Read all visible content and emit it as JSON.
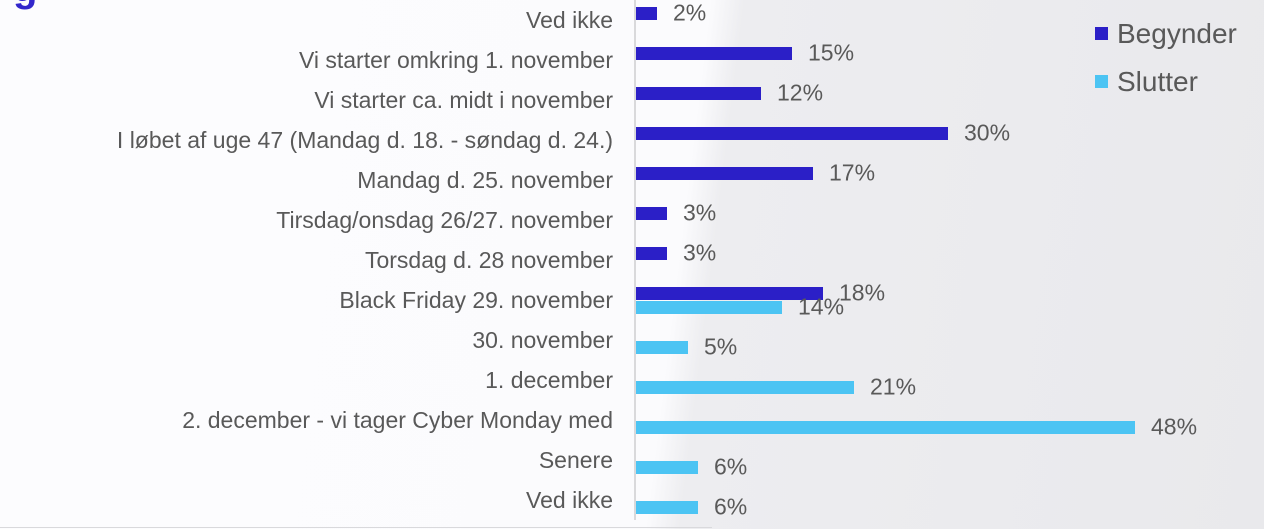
{
  "clipped_title": {
    "fragment": "g"
  },
  "colors": {
    "begynder": "#2b1fc7",
    "slutter": "#4cc4f3",
    "label_text": "#595959",
    "axis_line": "#d9d9db",
    "background_left": "#fbfbfd",
    "background_right": "#ebebee"
  },
  "legend": {
    "position": "top-right",
    "items": [
      {
        "label": "Begynder",
        "color": "#2b1fc7"
      },
      {
        "label": "Slutter",
        "color": "#4cc4f3"
      }
    ]
  },
  "chart_data": {
    "type": "bar",
    "orientation": "horizontal",
    "title": "",
    "xlabel": "",
    "ylabel": "",
    "x_axis_visible": false,
    "grid": false,
    "value_suffix": "%",
    "xlim": [
      0,
      50
    ],
    "categories": [
      "Ved ikke",
      "Vi starter omkring 1. november",
      "Vi starter ca. midt i november",
      "I løbet af uge 47 (Mandag d. 18. - søndag d. 24.)",
      "Mandag d. 25. november",
      "Tirsdag/onsdag 26/27. november",
      "Torsdag d. 28 november",
      "Black Friday 29. november",
      "30. november",
      "1. december",
      "2. december - vi tager Cyber Monday med",
      "Senere",
      "Ved ikke"
    ],
    "series": [
      {
        "name": "Begynder",
        "color": "#2b1fc7",
        "values": [
          2,
          15,
          12,
          30,
          17,
          3,
          3,
          18,
          null,
          null,
          null,
          null,
          null
        ],
        "labels": [
          "2%",
          "15%",
          "12%",
          "30%",
          "17%",
          "3%",
          "3%",
          "18%",
          null,
          null,
          null,
          null,
          null
        ]
      },
      {
        "name": "Slutter",
        "color": "#4cc4f3",
        "values": [
          null,
          null,
          null,
          null,
          null,
          null,
          null,
          14,
          5,
          21,
          48,
          6,
          6
        ],
        "labels": [
          null,
          null,
          null,
          null,
          null,
          null,
          null,
          "14%",
          "5%",
          "21%",
          "48%",
          "6%",
          "6%"
        ]
      }
    ]
  }
}
